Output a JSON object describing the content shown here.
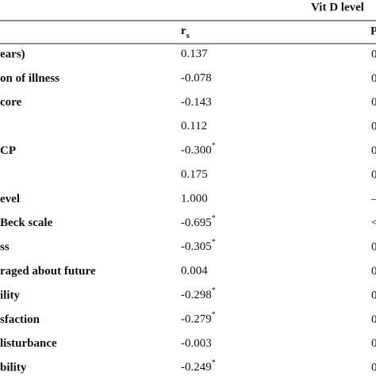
{
  "table": {
    "group_header": "Vit D level",
    "columns": {
      "rs": "r",
      "rs_sub": "s",
      "p": "P"
    },
    "rows": [
      {
        "label": "ears)",
        "rs": "0.137",
        "p": "0"
      },
      {
        "label": "on of illness",
        "rs": "-0.078",
        "p": "0"
      },
      {
        "label": "core",
        "rs": "-0.143",
        "p": "0"
      },
      {
        "label": null,
        "rs": "0.112",
        "p": "0"
      },
      {
        "label": "CP",
        "rs": "-0.300",
        "sig": "*",
        "p": "0"
      },
      {
        "label": null,
        "rs": "0.175",
        "p": "0"
      },
      {
        "label": "evel",
        "rs": "1.000",
        "p": "–"
      },
      {
        "label": "Beck scale",
        "rs": "-0.695",
        "sig": "*",
        "p": "<"
      },
      {
        "label": "ss",
        "rs": "-0.305",
        "sig": "*",
        "p": "0"
      },
      {
        "label": "raged about future",
        "rs": "0.004",
        "p": "0"
      },
      {
        "label": "ility",
        "rs": "-0.298",
        "sig": "*",
        "p": "0"
      },
      {
        "label": "sfaction",
        "rs": "-0.279",
        "sig": "*",
        "p": "0"
      },
      {
        "label": "listurbance",
        "rs": "-0.003",
        "p": "0"
      },
      {
        "label": "bility",
        "rs": "-0.249",
        "sig": "*",
        "p": "0"
      }
    ]
  }
}
